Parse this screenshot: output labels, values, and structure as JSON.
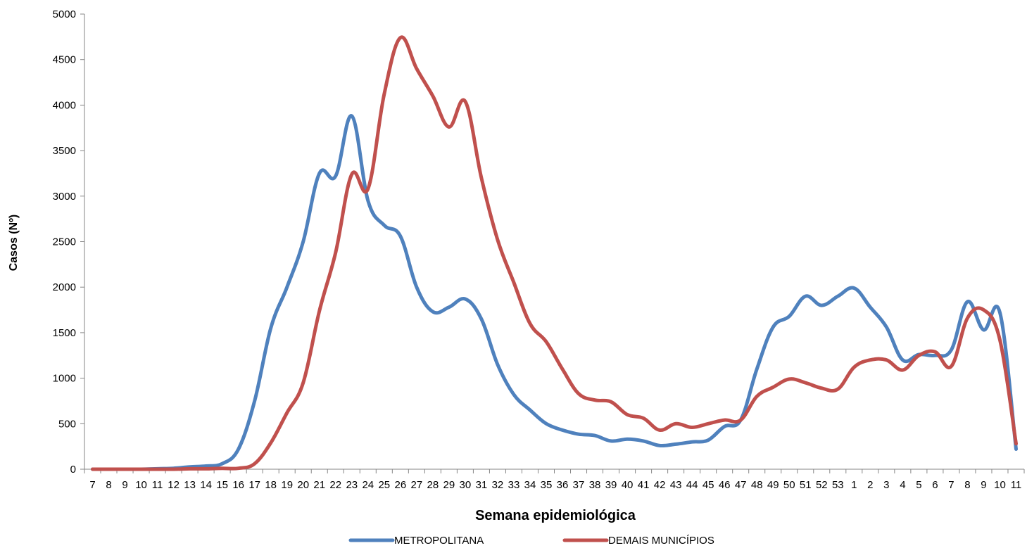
{
  "chart_data": {
    "type": "line",
    "title": "",
    "xlabel": "Semana epidemiológica",
    "ylabel": "Casos (Nº)",
    "ylim": [
      0,
      5000
    ],
    "yticks": [
      0,
      500,
      1000,
      1500,
      2000,
      2500,
      3000,
      3500,
      4000,
      4500,
      5000
    ],
    "grid": false,
    "legend_position": "bottom",
    "categories": [
      "7",
      "8",
      "9",
      "10",
      "11",
      "12",
      "13",
      "14",
      "15",
      "16",
      "17",
      "18",
      "19",
      "20",
      "21",
      "22",
      "23",
      "24",
      "25",
      "26",
      "27",
      "28",
      "29",
      "30",
      "31",
      "32",
      "33",
      "34",
      "35",
      "36",
      "37",
      "38",
      "39",
      "40",
      "41",
      "42",
      "43",
      "44",
      "45",
      "46",
      "47",
      "48",
      "49",
      "50",
      "51",
      "52",
      "53",
      "1",
      "2",
      "3",
      "4",
      "5",
      "6",
      "7",
      "8",
      "9",
      "10",
      "11"
    ],
    "series": [
      {
        "name": "METROPOLITANA",
        "color": "#4F81BD",
        "values": [
          0,
          0,
          0,
          0,
          5,
          10,
          25,
          35,
          60,
          220,
          750,
          1550,
          2000,
          2500,
          3250,
          3220,
          3880,
          2950,
          2680,
          2560,
          2000,
          1730,
          1780,
          1870,
          1650,
          1150,
          820,
          650,
          500,
          430,
          385,
          370,
          310,
          330,
          310,
          260,
          275,
          300,
          320,
          470,
          540,
          1100,
          1560,
          1680,
          1900,
          1800,
          1900,
          1990,
          1780,
          1560,
          1200,
          1260,
          1250,
          1310,
          1840,
          1530,
          1720,
          220
        ]
      },
      {
        "name": "DEMAIS MUNICÍPIOS",
        "color": "#C0504D",
        "values": [
          0,
          0,
          0,
          0,
          0,
          0,
          5,
          5,
          10,
          10,
          60,
          290,
          620,
          950,
          1740,
          2380,
          3240,
          3080,
          4120,
          4740,
          4400,
          4100,
          3760,
          4040,
          3200,
          2520,
          2050,
          1600,
          1400,
          1100,
          830,
          760,
          740,
          600,
          560,
          430,
          500,
          460,
          500,
          540,
          540,
          800,
          900,
          990,
          950,
          890,
          880,
          1120,
          1200,
          1200,
          1090,
          1250,
          1290,
          1130,
          1660,
          1750,
          1420,
          280
        ]
      }
    ]
  }
}
